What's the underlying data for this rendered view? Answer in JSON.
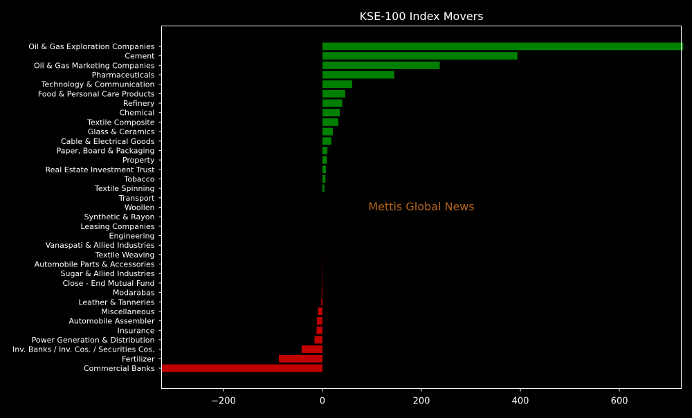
{
  "chart_data": {
    "type": "bar",
    "orientation": "horizontal",
    "title": "KSE-100 Index Movers",
    "watermark": "Mettis Global News",
    "xlabel": "",
    "ylabel": "",
    "xlim": [
      -325,
      725
    ],
    "xticks": [
      -200,
      0,
      200,
      400,
      600
    ],
    "xtick_labels": [
      "−200",
      "0",
      "200",
      "400",
      "600"
    ],
    "grid": false,
    "colors": {
      "background": "#000000",
      "positive": "#008000",
      "negative": "#c00000",
      "text": "#ffffff",
      "watermark": "#b5651d"
    },
    "categories": [
      "Oil & Gas Exploration Companies",
      "Cement",
      "Oil & Gas Marketing Companies",
      "Pharmaceuticals",
      "Technology & Communication",
      "Food & Personal Care Products",
      "Refinery",
      "Chemical",
      "Textile Composite",
      "Glass & Ceramics",
      "Cable & Electrical Goods",
      "Paper, Board & Packaging",
      "Property",
      "Real Estate Investment Trust",
      "Tobacco",
      "Textile Spinning",
      "Transport",
      "Woollen",
      "Synthetic & Rayon",
      "Leasing Companies",
      "Engineering",
      "Vanaspati & Allied Industries",
      "Textile Weaving",
      "Automobile Parts & Accessories",
      "Sugar & Allied Industries",
      "Close - End Mutual Fund",
      "Modarabas",
      "Leather & Tanneries",
      "Miscellaneous",
      "Automobile Assembler",
      "Insurance",
      "Power Generation & Distribution",
      "Inv. Banks / Inv. Cos. / Securities Cos.",
      "Fertilizer",
      "Commercial Banks"
    ],
    "values": [
      729,
      394,
      237,
      145,
      60,
      46,
      40,
      35,
      32,
      21,
      18,
      10,
      9,
      7,
      6,
      4,
      0,
      0,
      0,
      0,
      0,
      0,
      0,
      -0.5,
      -0.8,
      -1,
      -1.5,
      -2.5,
      -9,
      -11,
      -12,
      -16,
      -42,
      -88,
      -325
    ]
  }
}
